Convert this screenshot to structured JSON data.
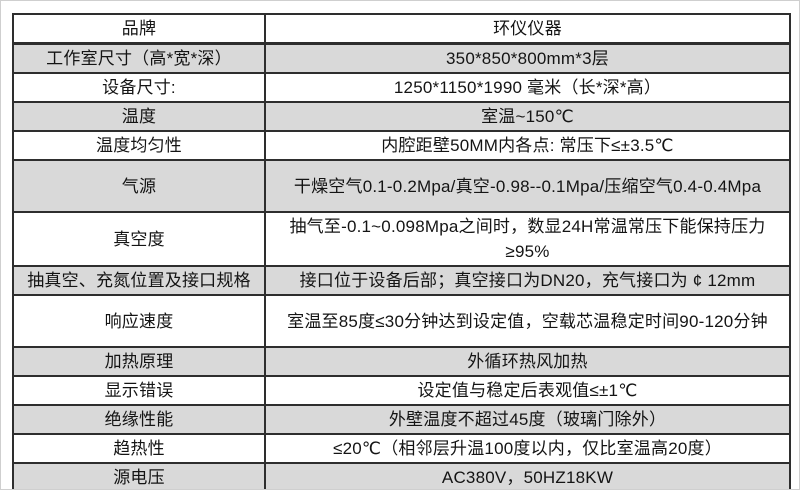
{
  "document": {
    "type": "product-specification-table",
    "columns": {
      "label_header": "品牌",
      "value_header": "环仪仪器"
    }
  },
  "table": {
    "rows": [
      {
        "label": "品牌",
        "value": "环仪仪器"
      },
      {
        "label": "工作室尺寸（高*宽*深）",
        "value": "350*850*800mm*3层"
      },
      {
        "label": "设备尺寸:",
        "value": "1250*1150*1990 毫米（长*深*高）"
      },
      {
        "label": "温度",
        "value": "室温~150℃"
      },
      {
        "label": "温度均匀性",
        "value": "内腔距壁50MM内各点: 常压下≤±3.5℃"
      },
      {
        "label": "气源",
        "value": "干燥空气0.1-0.2Mpa/真空-0.98--0.1Mpa/压缩空气0.4-0.4Mpa"
      },
      {
        "label": "真空度",
        "value": "抽气至-0.1~0.098Mpa之间时，数显24H常温常压下能保持压力≥95%"
      },
      {
        "label": "抽真空、充氮位置及接口规格",
        "value": "接口位于设备后部；真空接口为DN20，充气接口为 ¢ 12mm"
      },
      {
        "label": "响应速度",
        "value": "室温至85度≤30分钟达到设定值，空载芯温稳定时间90-120分钟"
      },
      {
        "label": "加热原理",
        "value": "外循环热风加热"
      },
      {
        "label": "显示错误",
        "value": "设定值与稳定后表观值≤±1℃"
      },
      {
        "label": "绝缘性能",
        "value": "外壁温度不超过45度（玻璃门除外）"
      },
      {
        "label": "趋热性",
        "value": "≤20℃（相邻层升温100度以内，仅比室温高20度）"
      },
      {
        "label": "源电压",
        "value": "AC380V，50HZ18KW"
      }
    ]
  },
  "colors": {
    "row_shaded_background": "#d9d9d9",
    "row_plain_background": "#ffffff",
    "table_border": "#2e2e2e",
    "text": "#141414"
  }
}
